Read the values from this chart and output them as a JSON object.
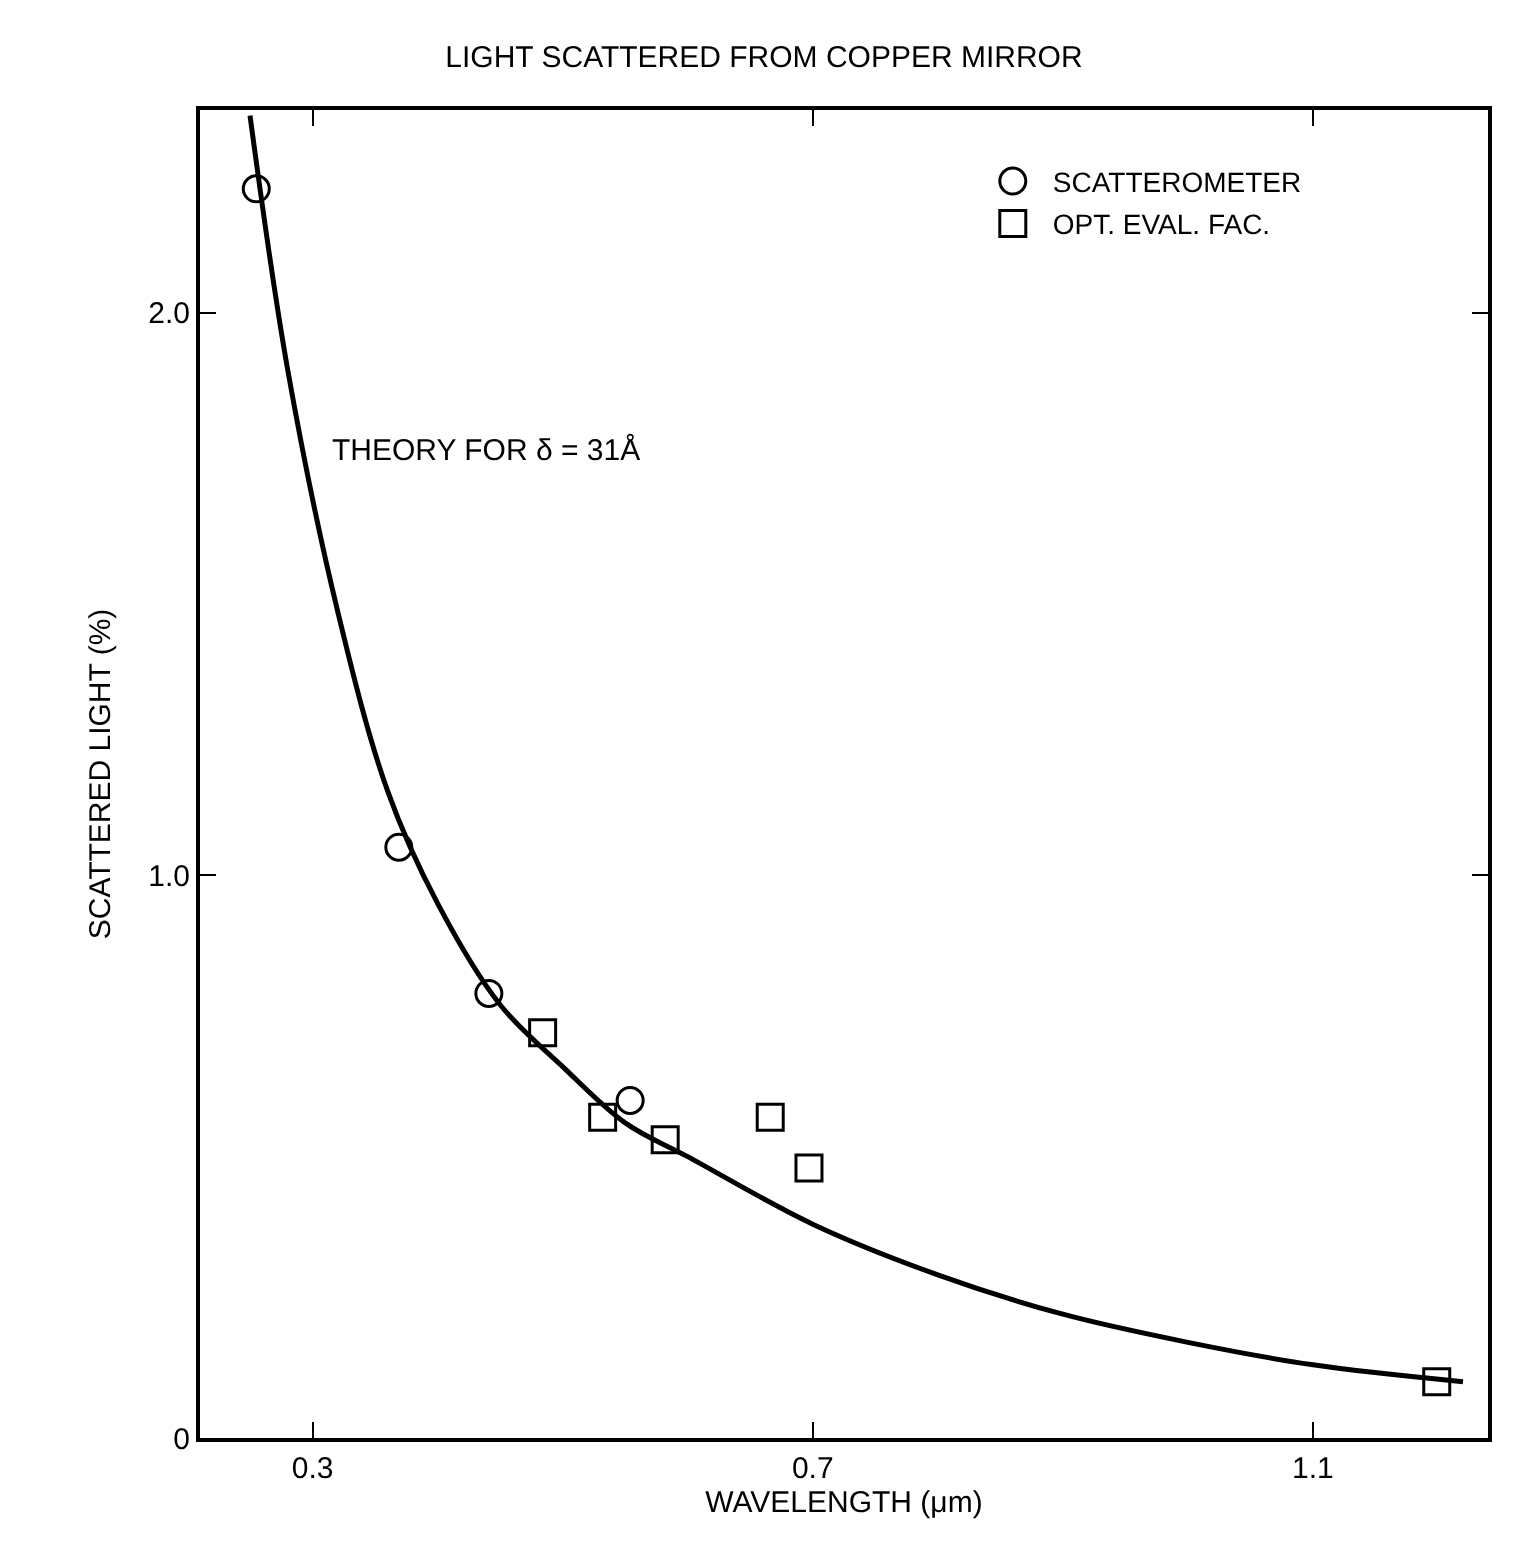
{
  "chart_data": {
    "type": "scatter",
    "title": "LIGHT SCATTERED FROM COPPER MIRROR",
    "xlabel": "WAVELENGTH (μm)",
    "ylabel": "SCATTERED LIGHT (%)",
    "xlim": [
      0.21,
      1.24
    ],
    "ylim": [
      0,
      2.36
    ],
    "xticks": [
      0.3,
      0.7,
      1.1
    ],
    "yticks": [
      {
        "value": 0,
        "label": "0"
      },
      {
        "value": 1,
        "label": "1.0"
      },
      {
        "value": 2,
        "label": "2.0"
      }
    ],
    "legend": "top right",
    "annotations": [
      "THEORY FOR δ = 31Å"
    ],
    "series": [
      {
        "name": "SCATTEROMETER",
        "marker": "circle",
        "color": "#000000",
        "x": [
          0.255,
          0.369,
          0.441,
          0.554
        ],
        "values": [
          2.22,
          1.05,
          0.79,
          0.6
        ]
      },
      {
        "name": "OPT. EVAL. FAC.",
        "marker": "square",
        "color": "#000000",
        "x": [
          0.484,
          0.532,
          0.582,
          0.666,
          0.697,
          1.199
        ],
        "values": [
          0.72,
          0.57,
          0.53,
          0.57,
          0.48,
          0.1
        ]
      },
      {
        "type": "line",
        "marker": "none",
        "color": "#000000",
        "x": [
          0.25,
          0.28,
          0.32,
          0.36,
          0.4,
          0.45,
          0.5,
          0.55,
          0.6,
          0.7,
          0.8,
          0.9,
          1.0,
          1.1,
          1.22
        ],
        "values": [
          2.35,
          1.9,
          1.47,
          1.15,
          0.95,
          0.77,
          0.66,
          0.56,
          0.5,
          0.38,
          0.29,
          0.22,
          0.17,
          0.13,
          0.1
        ]
      }
    ]
  }
}
